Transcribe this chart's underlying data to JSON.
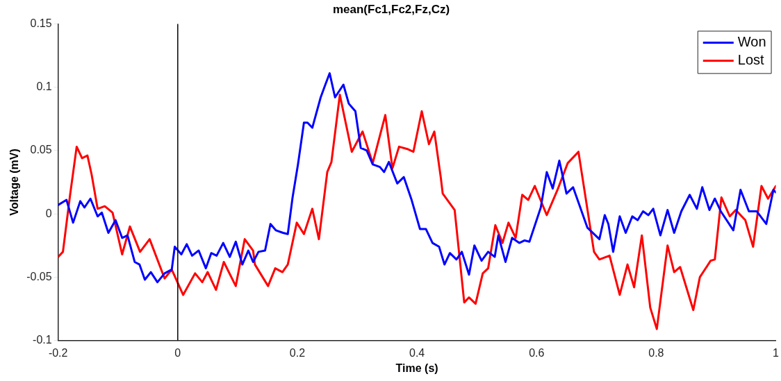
{
  "chart_data": {
    "type": "line",
    "title": "mean(Fc1,Fc2,Fz,Cz)",
    "xlabel": "Time (s)",
    "ylabel": "Voltage (mV)",
    "xlim": [
      -0.2,
      1
    ],
    "xticks": [
      -0.2,
      0,
      0.2,
      0.4,
      0.6,
      0.8,
      1
    ],
    "ylim": [
      -0.1,
      0.15
    ],
    "yticks": [
      -0.1,
      -0.05,
      0,
      0.05,
      0.1,
      0.15
    ],
    "grid": false,
    "legend": "top right",
    "marker": "none",
    "line_style": "solid",
    "ref_lines": [
      {
        "axis": "x",
        "value": 0,
        "color": "#000000"
      }
    ],
    "series": [
      {
        "name": "Won",
        "color": "#0000ff",
        "x": [
          -0.2,
          -0.186,
          -0.175,
          -0.163,
          -0.156,
          -0.146,
          -0.134,
          -0.127,
          -0.116,
          -0.104,
          -0.093,
          -0.084,
          -0.072,
          -0.064,
          -0.055,
          -0.045,
          -0.034,
          -0.022,
          -0.01,
          -0.005,
          0.006,
          0.015,
          0.024,
          0.035,
          0.047,
          0.056,
          0.065,
          0.076,
          0.087,
          0.097,
          0.108,
          0.118,
          0.126,
          0.135,
          0.146,
          0.155,
          0.164,
          0.176,
          0.184,
          0.192,
          0.201,
          0.211,
          0.217,
          0.225,
          0.239,
          0.246,
          0.254,
          0.263,
          0.277,
          0.286,
          0.297,
          0.306,
          0.316,
          0.326,
          0.338,
          0.345,
          0.353,
          0.367,
          0.378,
          0.391,
          0.405,
          0.415,
          0.426,
          0.437,
          0.446,
          0.455,
          0.466,
          0.475,
          0.487,
          0.496,
          0.508,
          0.519,
          0.53,
          0.536,
          0.548,
          0.559,
          0.571,
          0.58,
          0.588,
          0.607,
          0.617,
          0.627,
          0.638,
          0.65,
          0.661,
          0.685,
          0.705,
          0.714,
          0.72,
          0.728,
          0.739,
          0.749,
          0.76,
          0.769,
          0.778,
          0.787,
          0.795,
          0.807,
          0.819,
          0.83,
          0.842,
          0.856,
          0.868,
          0.877,
          0.889,
          0.898,
          0.908,
          0.929,
          0.941,
          0.955,
          0.968,
          0.984,
          0.996,
          1
        ],
        "values": [
          0.007,
          0.011,
          -0.007,
          0.01,
          0.005,
          0.012,
          -0.002,
          0.001,
          -0.015,
          -0.005,
          -0.019,
          -0.017,
          -0.038,
          -0.04,
          -0.052,
          -0.046,
          -0.054,
          -0.047,
          -0.044,
          -0.026,
          -0.032,
          -0.024,
          -0.033,
          -0.029,
          -0.043,
          -0.031,
          -0.033,
          -0.023,
          -0.034,
          -0.022,
          -0.04,
          -0.029,
          -0.038,
          -0.03,
          -0.029,
          -0.008,
          -0.013,
          -0.015,
          -0.016,
          0.013,
          0.039,
          0.072,
          0.072,
          0.068,
          0.092,
          0.101,
          0.111,
          0.092,
          0.102,
          0.087,
          0.081,
          0.052,
          0.05,
          0.039,
          0.037,
          0.033,
          0.041,
          0.024,
          0.029,
          0.011,
          -0.012,
          -0.012,
          -0.023,
          -0.026,
          -0.04,
          -0.031,
          -0.036,
          -0.03,
          -0.048,
          -0.025,
          -0.037,
          -0.03,
          -0.034,
          -0.017,
          -0.038,
          -0.019,
          -0.023,
          -0.021,
          -0.022,
          0.005,
          0.033,
          0.02,
          0.042,
          0.016,
          0.021,
          -0.011,
          -0.02,
          -0.001,
          -0.008,
          -0.03,
          -0.002,
          -0.015,
          -0.002,
          -0.005,
          0.002,
          -0.001,
          0.004,
          -0.017,
          0.003,
          -0.015,
          0.002,
          0.015,
          0.004,
          0.021,
          0.003,
          0.012,
          0.002,
          -0.013,
          0.019,
          0.002,
          0.002,
          -0.008,
          0.019,
          0.017
        ]
      },
      {
        "name": "Lost",
        "color": "#ff0000",
        "x": [
          -0.2,
          -0.192,
          -0.18,
          -0.169,
          -0.16,
          -0.151,
          -0.144,
          -0.134,
          -0.122,
          -0.109,
          -0.093,
          -0.08,
          -0.063,
          -0.047,
          -0.022,
          -0.01,
          0.009,
          0.029,
          0.041,
          0.05,
          0.064,
          0.077,
          0.097,
          0.112,
          0.126,
          0.129,
          0.151,
          0.163,
          0.175,
          0.184,
          0.199,
          0.211,
          0.225,
          0.236,
          0.25,
          0.257,
          0.271,
          0.291,
          0.309,
          0.326,
          0.347,
          0.359,
          0.37,
          0.385,
          0.394,
          0.408,
          0.42,
          0.429,
          0.44,
          0.443,
          0.463,
          0.479,
          0.487,
          0.498,
          0.51,
          0.519,
          0.531,
          0.543,
          0.553,
          0.565,
          0.576,
          0.586,
          0.597,
          0.617,
          0.635,
          0.652,
          0.67,
          0.696,
          0.705,
          0.722,
          0.739,
          0.752,
          0.763,
          0.776,
          0.79,
          0.801,
          0.819,
          0.83,
          0.84,
          0.862,
          0.873,
          0.891,
          0.898,
          0.909,
          0.923,
          0.933,
          0.949,
          0.962,
          0.976,
          0.987,
          1
        ],
        "values": [
          -0.034,
          -0.03,
          0.015,
          0.053,
          0.044,
          0.046,
          0.031,
          0.004,
          0.006,
          0.001,
          -0.032,
          -0.01,
          -0.03,
          -0.02,
          -0.051,
          -0.044,
          -0.064,
          -0.047,
          -0.054,
          -0.046,
          -0.06,
          -0.038,
          -0.057,
          -0.02,
          -0.029,
          -0.04,
          -0.057,
          -0.043,
          -0.046,
          -0.04,
          -0.007,
          -0.016,
          0.004,
          -0.02,
          0.033,
          0.041,
          0.094,
          0.049,
          0.065,
          0.04,
          0.078,
          0.036,
          0.053,
          0.051,
          0.049,
          0.081,
          0.055,
          0.065,
          0.028,
          0.016,
          0.003,
          -0.07,
          -0.066,
          -0.071,
          -0.047,
          -0.043,
          -0.009,
          -0.023,
          -0.007,
          -0.019,
          0.015,
          0.011,
          0.022,
          -0.001,
          0.019,
          0.04,
          0.049,
          -0.03,
          -0.036,
          -0.033,
          -0.064,
          -0.04,
          -0.058,
          -0.017,
          -0.074,
          -0.091,
          -0.025,
          -0.046,
          -0.042,
          -0.076,
          -0.05,
          -0.037,
          -0.036,
          0.013,
          -0.002,
          0.003,
          -0.005,
          -0.026,
          0.022,
          0.012,
          0.022
        ]
      }
    ]
  }
}
